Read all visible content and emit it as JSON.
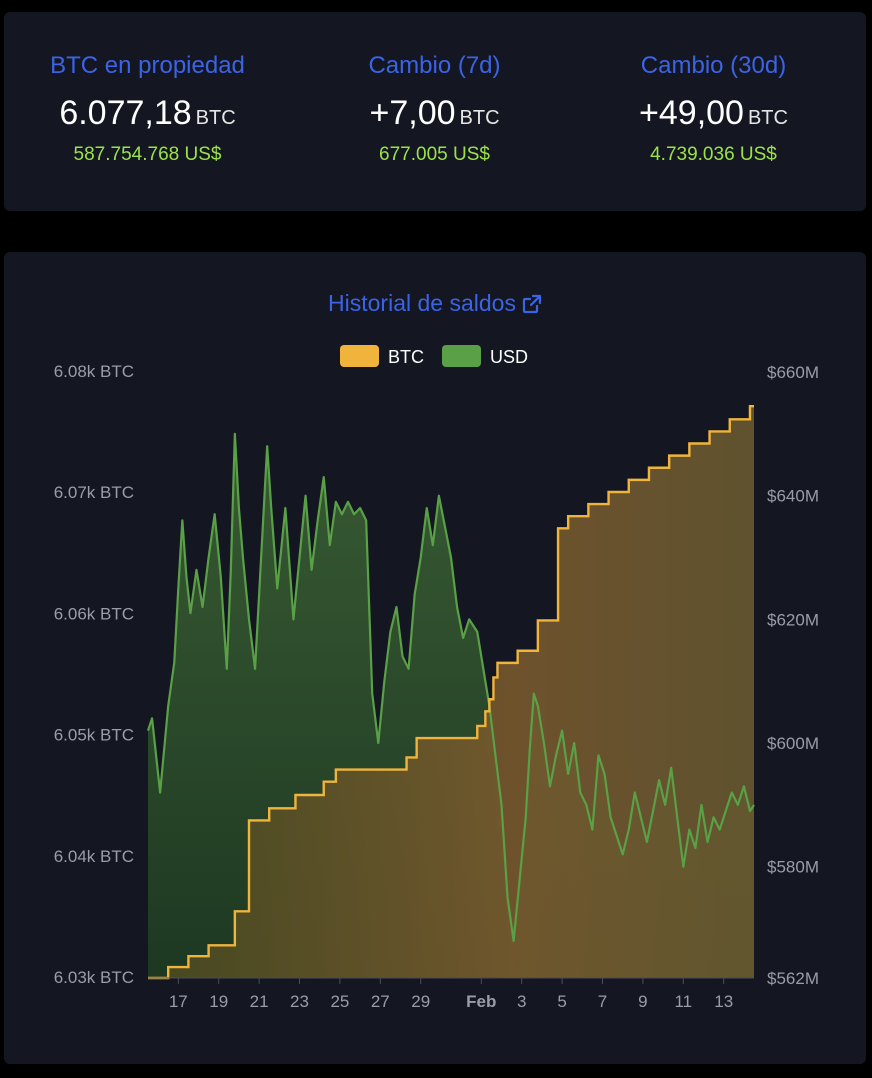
{
  "stats": [
    {
      "label": "BTC en propiedad",
      "value": "6.077,18",
      "unit": "BTC",
      "usd": "587.754.768 US$"
    },
    {
      "label": "Cambio (7d)",
      "value": "+7,00",
      "unit": "BTC",
      "usd": "677.005 US$"
    },
    {
      "label": "Cambio (30d)",
      "value": "+49,00",
      "unit": "BTC",
      "usd": "4.739.036 US$"
    }
  ],
  "chart": {
    "title": "Historial de saldos",
    "external_link_icon": "external-link-icon"
  },
  "chart_data": {
    "type": "line",
    "legend": {
      "placement": "top-center",
      "entries": [
        "BTC",
        "USD"
      ]
    },
    "colors": {
      "btc": "#f0b43c",
      "usd": "#5aa046"
    },
    "x_ticks": [
      {
        "day": 1,
        "label": "17"
      },
      {
        "day": 3,
        "label": "19"
      },
      {
        "day": 5,
        "label": "21"
      },
      {
        "day": 7,
        "label": "23"
      },
      {
        "day": 9,
        "label": "25"
      },
      {
        "day": 11,
        "label": "27"
      },
      {
        "day": 13,
        "label": "29"
      },
      {
        "day": 16,
        "label": "Feb"
      },
      {
        "day": 18,
        "label": "3"
      },
      {
        "day": 20,
        "label": "5"
      },
      {
        "day": 22,
        "label": "7"
      },
      {
        "day": 24,
        "label": "9"
      },
      {
        "day": 26,
        "label": "11"
      },
      {
        "day": 28,
        "label": "13"
      }
    ],
    "x_range": [
      -0.5,
      29.5
    ],
    "y_left": {
      "range": [
        6030,
        6080
      ],
      "ticks": [
        6030,
        6040,
        6050,
        6060,
        6070,
        6080
      ],
      "tick_labels": [
        "6.03k BTC",
        "6.04k BTC",
        "6.05k BTC",
        "6.06k BTC",
        "6.07k BTC",
        "6.08k BTC"
      ]
    },
    "y_right": {
      "range": [
        562,
        660
      ],
      "ticks": [
        562,
        580,
        600,
        620,
        640,
        660
      ],
      "tick_labels": [
        "$562M",
        "$580M",
        "$600M",
        "$620M",
        "$640M",
        "$660M"
      ]
    },
    "series": [
      {
        "name": "BTC",
        "axis": "left",
        "step": true,
        "points": [
          [
            -0.5,
            6030.0
          ],
          [
            0.5,
            6030.9
          ],
          [
            1.5,
            6031.8
          ],
          [
            2.5,
            6032.7
          ],
          [
            3.8,
            6035.5
          ],
          [
            4.5,
            6043.0
          ],
          [
            5.5,
            6044.0
          ],
          [
            6.8,
            6045.1
          ],
          [
            8.2,
            6046.2
          ],
          [
            8.8,
            6047.2
          ],
          [
            12.3,
            6048.2
          ],
          [
            12.8,
            6049.8
          ],
          [
            15.8,
            6050.8
          ],
          [
            16.2,
            6052.0
          ],
          [
            16.4,
            6053.0
          ],
          [
            16.6,
            6054.8
          ],
          [
            16.8,
            6056.0
          ],
          [
            17.8,
            6057.0
          ],
          [
            18.8,
            6059.5
          ],
          [
            19.8,
            6067.1
          ],
          [
            20.3,
            6068.1
          ],
          [
            21.3,
            6069.1
          ],
          [
            22.3,
            6070.1
          ],
          [
            23.3,
            6071.1
          ],
          [
            24.3,
            6072.1
          ],
          [
            25.3,
            6073.1
          ],
          [
            26.3,
            6074.1
          ],
          [
            27.3,
            6075.1
          ],
          [
            28.3,
            6076.1
          ],
          [
            29.3,
            6077.18
          ],
          [
            29.5,
            6077.18
          ]
        ]
      },
      {
        "name": "USD",
        "axis": "right",
        "step": false,
        "points": [
          [
            -0.5,
            602
          ],
          [
            -0.3,
            604
          ],
          [
            -0.1,
            598
          ],
          [
            0.1,
            592
          ],
          [
            0.3,
            599
          ],
          [
            0.5,
            606
          ],
          [
            0.8,
            613
          ],
          [
            1.0,
            625
          ],
          [
            1.2,
            636
          ],
          [
            1.4,
            627
          ],
          [
            1.6,
            621
          ],
          [
            1.9,
            628
          ],
          [
            2.2,
            622
          ],
          [
            2.5,
            630
          ],
          [
            2.8,
            637
          ],
          [
            3.1,
            627
          ],
          [
            3.4,
            612
          ],
          [
            3.6,
            628
          ],
          [
            3.8,
            650
          ],
          [
            4.0,
            638
          ],
          [
            4.2,
            630
          ],
          [
            4.5,
            620
          ],
          [
            4.8,
            612
          ],
          [
            5.1,
            630
          ],
          [
            5.4,
            648
          ],
          [
            5.6,
            638
          ],
          [
            5.9,
            625
          ],
          [
            6.3,
            638
          ],
          [
            6.7,
            620
          ],
          [
            7.0,
            630
          ],
          [
            7.3,
            640
          ],
          [
            7.6,
            628
          ],
          [
            7.9,
            636
          ],
          [
            8.2,
            643
          ],
          [
            8.5,
            632
          ],
          [
            8.8,
            639
          ],
          [
            9.1,
            637
          ],
          [
            9.4,
            639
          ],
          [
            9.7,
            637
          ],
          [
            10.0,
            638
          ],
          [
            10.3,
            636
          ],
          [
            10.6,
            608
          ],
          [
            10.9,
            600
          ],
          [
            11.2,
            610
          ],
          [
            11.5,
            618
          ],
          [
            11.8,
            622
          ],
          [
            12.1,
            614
          ],
          [
            12.4,
            612
          ],
          [
            12.7,
            624
          ],
          [
            13.0,
            630
          ],
          [
            13.3,
            638
          ],
          [
            13.6,
            632
          ],
          [
            13.9,
            640
          ],
          [
            14.2,
            635
          ],
          [
            14.5,
            630
          ],
          [
            14.8,
            622
          ],
          [
            15.1,
            617
          ],
          [
            15.4,
            620
          ],
          [
            15.8,
            618
          ],
          [
            16.1,
            612
          ],
          [
            16.4,
            606
          ],
          [
            16.7,
            598
          ],
          [
            17.0,
            590
          ],
          [
            17.3,
            575
          ],
          [
            17.6,
            568
          ],
          [
            17.9,
            578
          ],
          [
            18.2,
            588
          ],
          [
            18.4,
            599
          ],
          [
            18.6,
            608
          ],
          [
            18.8,
            606
          ],
          [
            19.1,
            600
          ],
          [
            19.4,
            593
          ],
          [
            19.7,
            598
          ],
          [
            20.0,
            602
          ],
          [
            20.3,
            595
          ],
          [
            20.6,
            600
          ],
          [
            20.9,
            592
          ],
          [
            21.2,
            590
          ],
          [
            21.5,
            586
          ],
          [
            21.8,
            598
          ],
          [
            22.1,
            595
          ],
          [
            22.4,
            588
          ],
          [
            22.7,
            585
          ],
          [
            23.0,
            582
          ],
          [
            23.3,
            586
          ],
          [
            23.6,
            592
          ],
          [
            23.9,
            588
          ],
          [
            24.2,
            584
          ],
          [
            24.5,
            589
          ],
          [
            24.8,
            594
          ],
          [
            25.1,
            590
          ],
          [
            25.4,
            596
          ],
          [
            25.7,
            588
          ],
          [
            26.0,
            580
          ],
          [
            26.3,
            586
          ],
          [
            26.6,
            583
          ],
          [
            26.9,
            590
          ],
          [
            27.2,
            584
          ],
          [
            27.5,
            588
          ],
          [
            27.8,
            586
          ],
          [
            28.1,
            589
          ],
          [
            28.4,
            592
          ],
          [
            28.7,
            590
          ],
          [
            29.0,
            593
          ],
          [
            29.3,
            589
          ],
          [
            29.5,
            590
          ]
        ]
      }
    ]
  }
}
